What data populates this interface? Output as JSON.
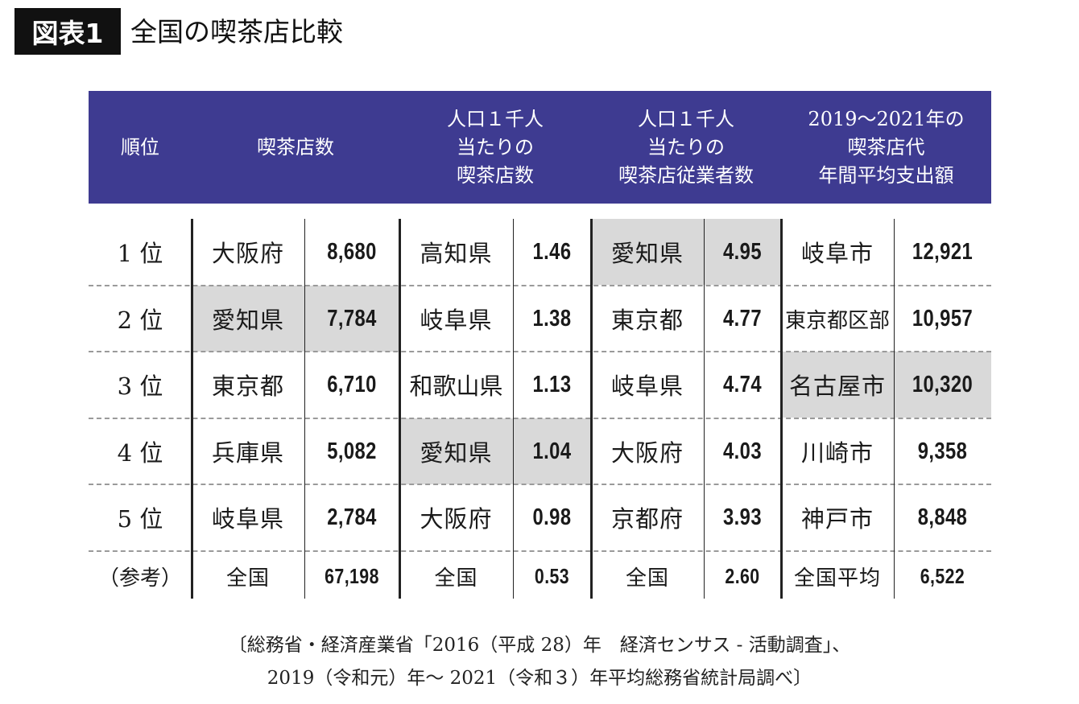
{
  "figure": {
    "label": "図表1",
    "title": "全国の喫茶店比較"
  },
  "headers": {
    "rank": "順位",
    "stores": "喫茶店数",
    "per_capita_stores": "人口１千人\n当たりの\n喫茶店数",
    "per_capita_employees": "人口１千人\n当たりの\n喫茶店従業者数",
    "spending": "2019〜2021年の\n喫茶店代\n年間平均支出額"
  },
  "rows": [
    {
      "rank": "1 位",
      "stores_name": "大阪府",
      "stores_value": "8,680",
      "pc_name": "高知県",
      "pc_value": "1.46",
      "emp_name": "愛知県",
      "emp_value": "4.95",
      "sp_name": "岐阜市",
      "sp_value": "12,921"
    },
    {
      "rank": "2 位",
      "stores_name": "愛知県",
      "stores_value": "7,784",
      "pc_name": "岐阜県",
      "pc_value": "1.38",
      "emp_name": "東京都",
      "emp_value": "4.77",
      "sp_name": "東京都区部",
      "sp_value": "10,957"
    },
    {
      "rank": "3 位",
      "stores_name": "東京都",
      "stores_value": "6,710",
      "pc_name": "和歌山県",
      "pc_value": "1.13",
      "emp_name": "岐阜県",
      "emp_value": "4.74",
      "sp_name": "名古屋市",
      "sp_value": "10,320"
    },
    {
      "rank": "4 位",
      "stores_name": "兵庫県",
      "stores_value": "5,082",
      "pc_name": "愛知県",
      "pc_value": "1.04",
      "emp_name": "大阪府",
      "emp_value": "4.03",
      "sp_name": "川崎市",
      "sp_value": "9,358"
    },
    {
      "rank": "5 位",
      "stores_name": "岐阜県",
      "stores_value": "2,784",
      "pc_name": "大阪府",
      "pc_value": "0.98",
      "emp_name": "京都府",
      "emp_value": "3.93",
      "sp_name": "神戸市",
      "sp_value": "8,848"
    },
    {
      "rank": "（参考）",
      "stores_name": "全国",
      "stores_value": "67,198",
      "pc_name": "全国",
      "pc_value": "0.53",
      "emp_name": "全国",
      "emp_value": "2.60",
      "sp_name": "全国平均",
      "sp_value": "6,522"
    }
  ],
  "highlight_color": "#d9d9d9",
  "header_color": "#3e3b91",
  "source": {
    "line1": "〔総務省・経済産業省「2016（平成 28）年　経済センサス - 活動調査」、",
    "line2": "2019（令和元）年〜 2021（令和３）年平均総務省統計局調べ〕"
  }
}
